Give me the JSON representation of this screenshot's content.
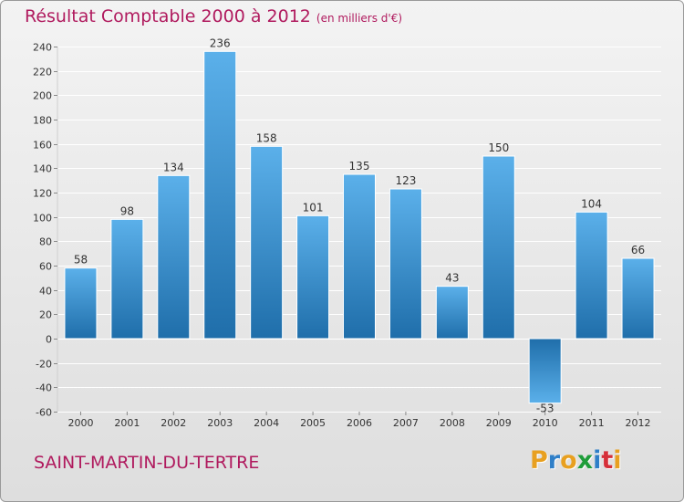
{
  "header": {
    "title": "Résultat Comptable 2000 à 2012",
    "subtitle": "(en milliers d'€)"
  },
  "footer": {
    "commune": "SAINT-MARTIN-DU-TERTRE"
  },
  "logo": {
    "letters": [
      "P",
      "r",
      "o",
      "x",
      "i",
      "t",
      "i"
    ],
    "colors": [
      "#e8a020",
      "#2f7fc8",
      "#e8a020",
      "#1f9d3a",
      "#2f7fc8",
      "#d6303a",
      "#e8a020"
    ]
  },
  "colors": {
    "title": "#b01a5e",
    "bar_light": "#5bb0ea",
    "bar_dark": "#1f6eaa",
    "grid": "#ffffff",
    "axis_text": "#333333"
  },
  "chart_data": {
    "type": "bar",
    "title": "Résultat Comptable 2000 à 2012",
    "subtitle": "(en milliers d'€)",
    "xlabel": "",
    "ylabel": "",
    "categories": [
      "2000",
      "2001",
      "2002",
      "2003",
      "2004",
      "2005",
      "2006",
      "2007",
      "2008",
      "2009",
      "2010",
      "2011",
      "2012"
    ],
    "values": [
      58,
      98,
      134,
      236,
      158,
      101,
      135,
      123,
      43,
      150,
      -53,
      104,
      66
    ],
    "ylim": [
      -60,
      240
    ],
    "yticks": [
      -60,
      -40,
      -20,
      0,
      20,
      40,
      60,
      80,
      100,
      120,
      140,
      160,
      180,
      200,
      220,
      240
    ],
    "grid": true,
    "legend": "none"
  }
}
